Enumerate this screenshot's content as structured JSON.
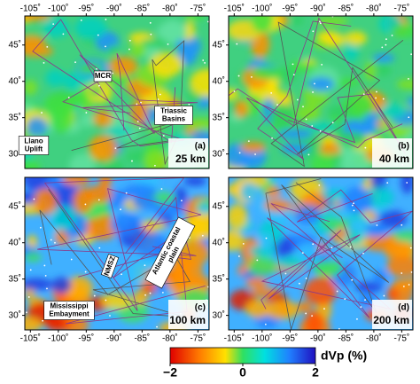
{
  "panels": [
    {
      "label": "(a)",
      "depth": "25 km",
      "annotations": [
        {
          "lines": [
            "MCR"
          ]
        },
        {
          "lines": [
            "Triassic",
            "Basins"
          ]
        },
        {
          "lines": [
            "Llano",
            "Uplift"
          ]
        }
      ]
    },
    {
      "label": "(b)",
      "depth": "40 km",
      "annotations": []
    },
    {
      "label": "(c)",
      "depth": "100 km",
      "annotations": [
        {
          "lines": [
            "NMSZ"
          ]
        },
        {
          "lines": [
            "Atlantic coastal",
            "plain"
          ]
        },
        {
          "lines": [
            "Mississippi",
            "Embayment"
          ]
        }
      ]
    },
    {
      "label": "(d)",
      "depth": "200 km",
      "annotations": []
    }
  ],
  "lon_lim": [
    -106,
    -73
  ],
  "lat_lim": [
    28,
    49
  ],
  "lon_ticks": [
    {
      "value": -105,
      "label": "-105˚"
    },
    {
      "value": -100,
      "label": "-100˚"
    },
    {
      "value": -95,
      "label": "-95˚"
    },
    {
      "value": -90,
      "label": "-90˚"
    },
    {
      "value": -85,
      "label": "-85˚"
    },
    {
      "value": -80,
      "label": "-80˚"
    },
    {
      "value": -75,
      "label": "-75˚"
    }
  ],
  "lat_ticks": [
    {
      "value": 30,
      "label": "30˚"
    },
    {
      "value": 35,
      "label": "35˚"
    },
    {
      "value": 40,
      "label": "40˚"
    },
    {
      "value": 45,
      "label": "45˚"
    }
  ],
  "colorbar": {
    "label": "dVp (%)",
    "lim": [
      -2,
      2
    ],
    "ticks": [
      {
        "value": -2,
        "label": "−2"
      },
      0,
      2
    ]
  }
}
